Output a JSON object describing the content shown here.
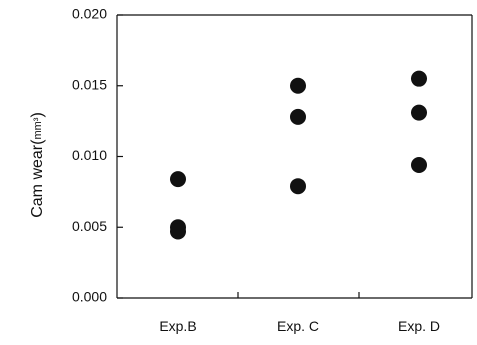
{
  "chart_data": {
    "type": "scatter",
    "title": "",
    "xlabel": "",
    "ylabel": "Cam wear",
    "ylabel_unit": "mm³",
    "categories": [
      "Exp.B",
      "Exp. C",
      "Exp. D"
    ],
    "ylim": [
      0.0,
      0.02
    ],
    "yticks": [
      "0.000",
      "0.005",
      "0.010",
      "0.015",
      "0.020"
    ],
    "grid": false,
    "legend": "none",
    "series": [
      {
        "points": [
          {
            "category": "Exp.B",
            "y": 0.0084
          },
          {
            "category": "Exp.B",
            "y": 0.005
          },
          {
            "category": "Exp.B",
            "y": 0.0047
          },
          {
            "category": "Exp. C",
            "y": 0.015
          },
          {
            "category": "Exp. C",
            "y": 0.0128
          },
          {
            "category": "Exp. C",
            "y": 0.0079
          },
          {
            "category": "Exp. D",
            "y": 0.0155
          },
          {
            "category": "Exp. D",
            "y": 0.0131
          },
          {
            "category": "Exp. D",
            "y": 0.0094
          }
        ]
      }
    ],
    "marker_color": "#111111"
  }
}
